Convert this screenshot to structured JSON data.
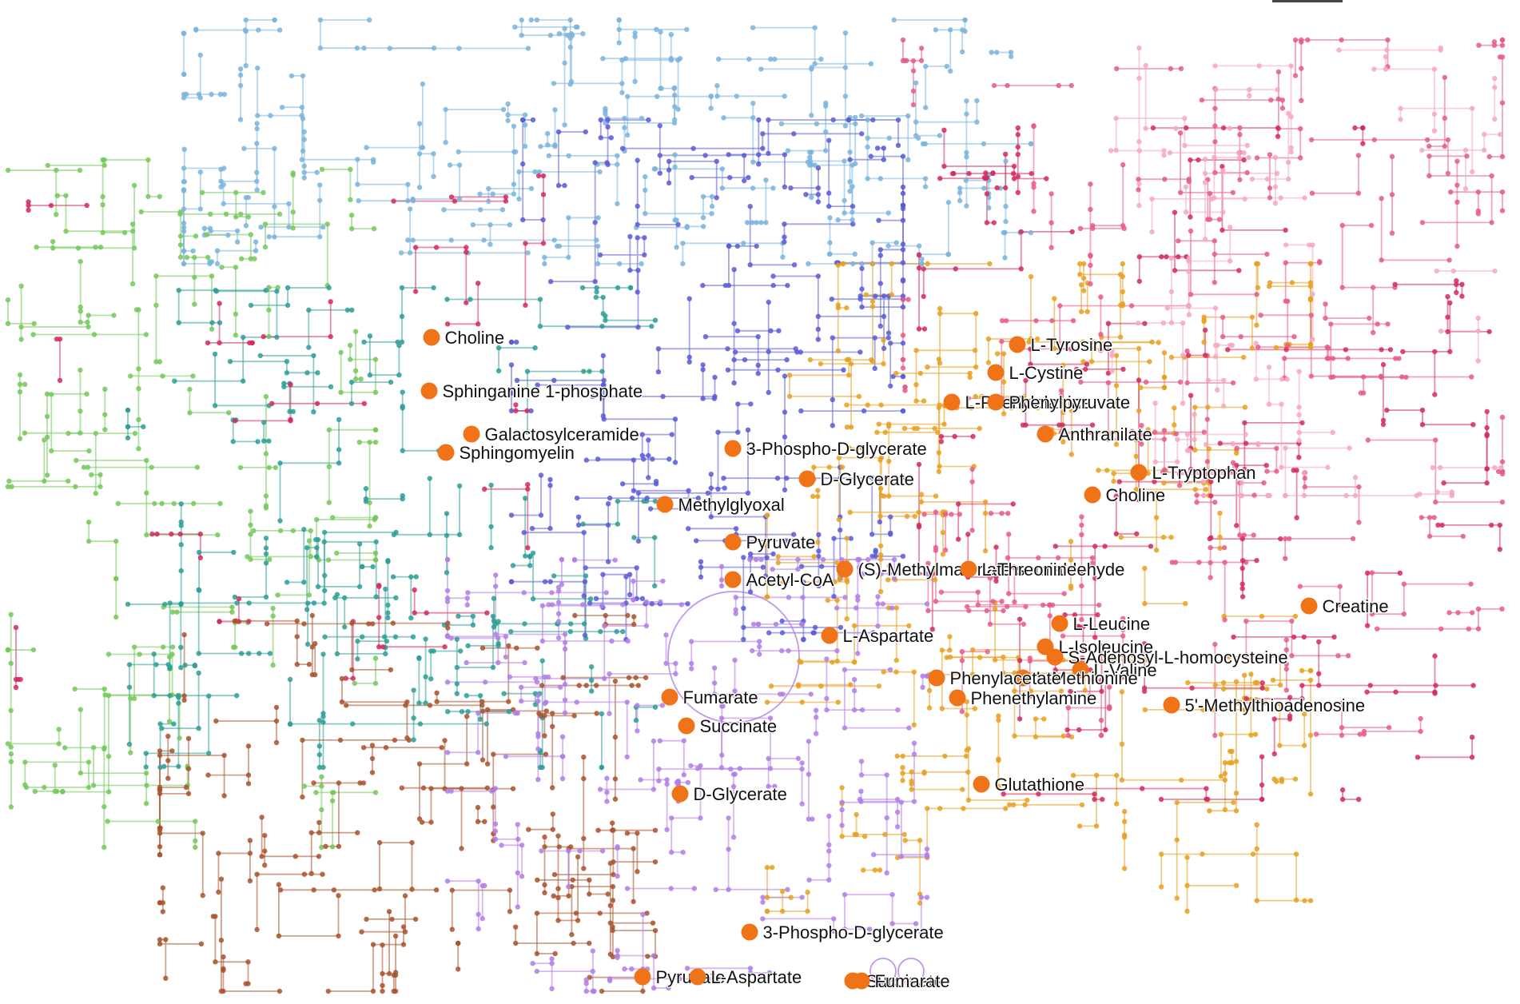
{
  "diagram": {
    "type": "metabolic-pathway-map",
    "highlight_color": "#f07318",
    "pathway_colors": {
      "lipid": "#7ab4dc",
      "glycan": "#74c85a",
      "carbohydrate": "#5b5bd6",
      "lipid_2": "#2e9e96",
      "amino_acid": "#e6a020",
      "secondary": "#e65a8a",
      "cofactor": "#d22a5e",
      "nucleotide": "#a8522e",
      "energy": "#b27ee6",
      "other": "#f4a8c0"
    },
    "highlighted_metabolites": [
      {
        "id": "m1",
        "label": "Choline"
      },
      {
        "id": "m2",
        "label": "Sphinganine 1-phosphate"
      },
      {
        "id": "m3",
        "label": "Galactosylceramide"
      },
      {
        "id": "m4",
        "label": "Sphingomyelin"
      },
      {
        "id": "m5",
        "label": "3-Phospho-D-glycerate"
      },
      {
        "id": "m6",
        "label": "D-Glycerate"
      },
      {
        "id": "m7",
        "label": "Methylglyoxal"
      },
      {
        "id": "m8",
        "label": "Pyruvate"
      },
      {
        "id": "m9",
        "label": "Acetyl-CoA"
      },
      {
        "id": "m10",
        "label": "(S)-Methylmalonate semialdehyde"
      },
      {
        "id": "m11",
        "label": "L-Threonine"
      },
      {
        "id": "m12",
        "label": "L-Aspartate"
      },
      {
        "id": "m13",
        "label": "Fumarate"
      },
      {
        "id": "m14",
        "label": "Succinate"
      },
      {
        "id": "m15",
        "label": "D-Glycerate"
      },
      {
        "id": "m16",
        "label": "3-Phospho-D-glycerate"
      },
      {
        "id": "m17",
        "label": "Pyruvate"
      },
      {
        "id": "m18",
        "label": "L-Aspartate"
      },
      {
        "id": "m19",
        "label": "Succinate"
      },
      {
        "id": "m20",
        "label": "Fumarate"
      },
      {
        "id": "m21",
        "label": "L-Tyrosine"
      },
      {
        "id": "m22",
        "label": "L-Cystine"
      },
      {
        "id": "m23",
        "label": "L-Phenylalanine"
      },
      {
        "id": "m24",
        "label": "Phenylpyruvate"
      },
      {
        "id": "m25",
        "label": "Anthranilate"
      },
      {
        "id": "m26",
        "label": "L-Tryptophan"
      },
      {
        "id": "m27",
        "label": "Choline"
      },
      {
        "id": "m28",
        "label": "Creatine"
      },
      {
        "id": "m29",
        "label": "L-Leucine"
      },
      {
        "id": "m30",
        "label": "L-Isoleucine"
      },
      {
        "id": "m31",
        "label": "S-Adenosyl-L-homocysteine"
      },
      {
        "id": "m32",
        "label": "L-Valine"
      },
      {
        "id": "m33",
        "label": "L-Methionine"
      },
      {
        "id": "m34",
        "label": "Phenylacetate"
      },
      {
        "id": "m35",
        "label": "Phenethylamine"
      },
      {
        "id": "m36",
        "label": "5'-Methylthioadenosine"
      },
      {
        "id": "m37",
        "label": "Glutathione"
      }
    ]
  }
}
